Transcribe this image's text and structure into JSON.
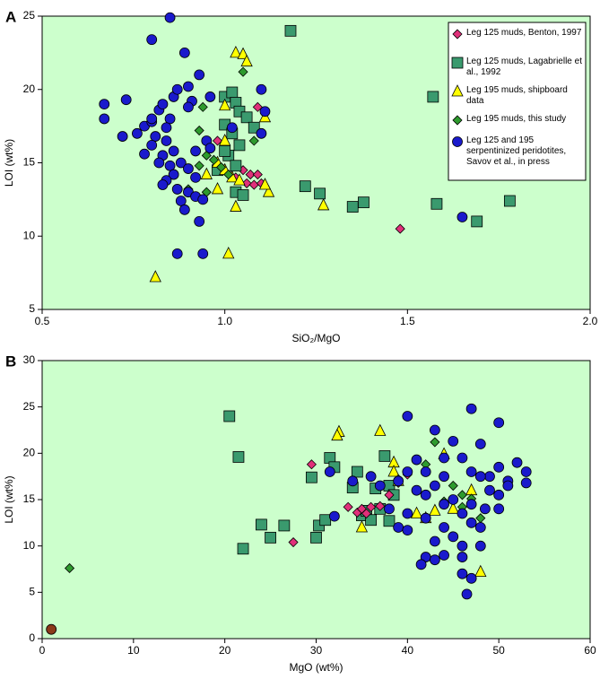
{
  "chart_data": [
    {
      "type": "scatter",
      "label": "A",
      "xlabel": "SiO₂/MgO",
      "ylabel": "LOI (wt%)",
      "xlim": [
        0.5,
        2.0
      ],
      "xticks": [
        0.5,
        {
          "value": 1.0,
          "label": "1.0"
        },
        1.5,
        {
          "value": 2.0,
          "label": "2.0"
        }
      ],
      "ylim": [
        5,
        25
      ],
      "yticks": [
        5,
        10,
        15,
        20,
        25
      ],
      "background": "#ccffcc",
      "legend": "upper right",
      "series": [
        {
          "name": "Leg 125 muds, Benton, 1997",
          "color": "#e0307a",
          "marker": "diamond",
          "x": [
            1.48,
            1.09,
            1.05,
            1.07,
            1.09,
            1.06,
            1.08,
            1.1,
            1.03,
            0.98
          ],
          "values": [
            10.5,
            18.8,
            14.5,
            14.2,
            14.2,
            13.6,
            13.5,
            13.6,
            14.0,
            16.5
          ]
        },
        {
          "name": "Leg 125 muds, Lagabrielle et al., 1992",
          "color": "#3a9a6e",
          "marker": "square",
          "x": [
            1.18,
            1.57,
            1.0,
            1.02,
            1.03,
            1.04,
            1.06,
            1.08,
            1.0,
            1.02,
            1.04,
            1.01,
            1.03,
            1.03,
            1.05,
            1.22,
            1.26,
            1.35,
            1.38,
            1.58,
            1.69,
            1.78,
            0.98,
            1.0
          ],
          "values": [
            24,
            19.5,
            19.5,
            19.8,
            19.1,
            18.5,
            18.1,
            17.4,
            17.6,
            17.0,
            16.2,
            15.5,
            14.8,
            13.0,
            12.8,
            13.4,
            12.9,
            12.0,
            12.3,
            12.2,
            11.0,
            12.4,
            14.5,
            15.8
          ]
        },
        {
          "name": "Leg 195 muds, shipboard data",
          "color": "#ffff00",
          "marker": "triangle",
          "x": [
            0.81,
            1.01,
            1.03,
            1.05,
            1.06,
            1.11,
            1.0,
            1.0,
            0.98,
            1.0,
            1.02,
            1.04,
            1.12,
            1.11,
            1.03,
            1.27,
            0.98,
            0.95
          ],
          "values": [
            7.2,
            8.8,
            22.5,
            22.4,
            21.9,
            18.1,
            18.9,
            16.5,
            15.0,
            14.5,
            14.0,
            13.8,
            13.0,
            13.5,
            12.0,
            12.1,
            13.2,
            14.2
          ]
        },
        {
          "name": "Leg 195 muds, this study",
          "color": "#2e9a2e",
          "marker": "diamond",
          "x": [
            1.05,
            0.94,
            0.93,
            1.08,
            0.95,
            0.97,
            0.93,
            0.99,
            1.01,
            0.9,
            0.95
          ],
          "values": [
            21.2,
            18.8,
            17.2,
            16.5,
            15.5,
            15.2,
            14.8,
            14.7,
            14.2,
            13.2,
            13.0
          ]
        },
        {
          "name": "Leg 125 and 195 serpentinized peridotites, Savov et al., in press",
          "color": "#1a1acc",
          "marker": "circle",
          "x": [
            0.85,
            0.8,
            0.89,
            0.67,
            0.73,
            0.67,
            0.72,
            0.76,
            0.78,
            0.8,
            0.82,
            0.8,
            0.83,
            0.86,
            0.87,
            0.9,
            0.91,
            0.9,
            0.85,
            0.84,
            0.81,
            0.8,
            0.84,
            0.86,
            0.83,
            0.78,
            0.82,
            0.85,
            0.88,
            0.9,
            0.86,
            0.84,
            0.83,
            0.87,
            0.9,
            0.92,
            0.88,
            0.89,
            0.94,
            0.93,
            0.87,
            0.94,
            1.02,
            1.1,
            1.11,
            1.1,
            1.65,
            0.95,
            0.96,
            0.92,
            0.93,
            0.96,
            0.92
          ],
          "values": [
            24.9,
            23.4,
            22.5,
            19.0,
            19.3,
            18.0,
            16.8,
            17.0,
            17.5,
            17.8,
            18.6,
            18.0,
            19.0,
            19.5,
            20.0,
            20.2,
            19.2,
            18.8,
            18.0,
            17.4,
            16.8,
            16.2,
            16.5,
            15.8,
            15.5,
            15.6,
            15.0,
            14.8,
            15.0,
            14.6,
            14.2,
            13.8,
            13.5,
            13.2,
            13.0,
            12.7,
            12.4,
            11.8,
            12.5,
            11.0,
            8.8,
            8.8,
            17.4,
            20.0,
            18.5,
            17.0,
            11.3,
            16.5,
            16.0,
            15.8,
            21.0,
            19.5,
            14.0
          ]
        }
      ]
    },
    {
      "type": "scatter",
      "label": "B",
      "xlabel": "MgO (wt%)",
      "ylabel": "LOI (wt%)",
      "xlim": [
        0,
        60
      ],
      "xticks": [
        0,
        10,
        20,
        30,
        40,
        50,
        60
      ],
      "ylim": [
        0,
        30
      ],
      "yticks": [
        0,
        5,
        10,
        15,
        20,
        25,
        30
      ],
      "background": "#ccffcc",
      "series": [
        {
          "color": "#3a9a6e",
          "marker": "square",
          "x": [
            20.5,
            21.5,
            22,
            24,
            25,
            26.5,
            29.5,
            30,
            30.3,
            31,
            31.5,
            32,
            34,
            34.5,
            35,
            35.5,
            36,
            37,
            37.5,
            38,
            38.5,
            38,
            36.5
          ],
          "values": [
            24,
            19.6,
            9.7,
            12.3,
            10.9,
            12.2,
            17.4,
            10.9,
            12.2,
            12.8,
            19.5,
            18.5,
            16.3,
            18,
            13.3,
            13.8,
            12.8,
            14,
            19.7,
            16.5,
            15.5,
            12.7,
            16.2
          ]
        },
        {
          "color": "#e0307a",
          "marker": "diamond",
          "x": [
            27.5,
            29.5,
            33.5,
            34.5,
            35,
            35.5,
            36,
            37,
            38,
            39,
            40
          ],
          "values": [
            10.4,
            18.8,
            14.2,
            13.6,
            14.0,
            13.5,
            14.2,
            14.3,
            15.5,
            16.8,
            17.7
          ]
        },
        {
          "color": "#ffff00",
          "marker": "triangle",
          "x": [
            32.5,
            32.3,
            37,
            38.5,
            38.5,
            39,
            41,
            44,
            42,
            43,
            35,
            48,
            47,
            45
          ],
          "values": [
            22.3,
            21.9,
            22.4,
            19.0,
            18.0,
            17.0,
            13.5,
            19.9,
            13.0,
            13.8,
            12.0,
            7.2,
            16.0,
            14.0
          ]
        },
        {
          "color": "#2e9a2e",
          "marker": "diamond",
          "x": [
            3,
            43,
            42,
            39,
            45,
            46,
            47,
            44,
            48,
            46
          ],
          "values": [
            7.6,
            21.2,
            18.8,
            17.2,
            16.5,
            15.5,
            15.1,
            14.8,
            13.0,
            14.2
          ]
        },
        {
          "color": "#1a1acc",
          "marker": "circle",
          "x": [
            40,
            43,
            47,
            50,
            45,
            48,
            52,
            53,
            53,
            50,
            49,
            51,
            46,
            44,
            41,
            42,
            40,
            39,
            41,
            42,
            43,
            44,
            47,
            48,
            49,
            50,
            45,
            46,
            47,
            48,
            44,
            45,
            46,
            43,
            44,
            42,
            43,
            46,
            47,
            46.5,
            46,
            48,
            48.5,
            47,
            42,
            40,
            39,
            40,
            41.5,
            38,
            37,
            36,
            34,
            32,
            31.5,
            50,
            51,
            44
          ],
          "values": [
            24,
            22.5,
            24.8,
            23.3,
            21.3,
            21,
            19,
            18,
            16.8,
            18.5,
            17.5,
            17,
            19.5,
            19.5,
            19.3,
            18,
            18,
            17,
            16,
            15.5,
            16.5,
            17.5,
            18,
            17.5,
            16,
            15.5,
            15,
            13.5,
            12.5,
            12,
            12,
            11,
            10,
            10.5,
            9,
            8.8,
            8.5,
            8.8,
            6.5,
            4.8,
            7,
            10,
            14,
            14.5,
            13,
            13.5,
            12,
            11.7,
            8,
            14,
            16.5,
            17.5,
            17,
            13.2,
            18,
            14,
            16.5,
            14.5
          ]
        },
        {
          "color": "#8b3a1a",
          "marker": "circle",
          "x": [
            1
          ],
          "values": [
            1
          ]
        }
      ]
    }
  ]
}
